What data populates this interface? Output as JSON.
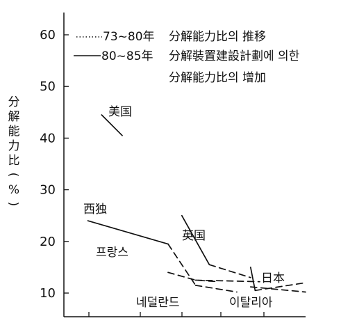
{
  "chart_data": {
    "type": "line",
    "ylabel": "分解能力比(%)",
    "ylim": [
      5,
      60
    ],
    "yticks": [
      10,
      20,
      30,
      40,
      50,
      60
    ],
    "grid": false,
    "legend": {
      "placement": "top",
      "entries": [
        {
          "style": "dotted",
          "label_a": "73~80年",
          "label_b": "分解能力比의 推移"
        },
        {
          "style": "solid",
          "label_a": "80~85年",
          "label_b": "分解裝置建設計劃에 의한",
          "label_c": "分解能力比의 增加"
        }
      ]
    },
    "series": [
      {
        "name": "美国",
        "segments": [
          {
            "style": "solid",
            "x": [
              0.55,
              1.0
            ],
            "y": [
              44.5,
              40.5
            ]
          }
        ]
      },
      {
        "name": "西独",
        "segments": [
          {
            "style": "solid",
            "x": [
              0.25,
              2.0
            ],
            "y": [
              24.0,
              19.5
            ]
          },
          {
            "style": "dashed",
            "x": [
              2.0,
              2.6
            ],
            "y": [
              19.5,
              11.5
            ]
          },
          {
            "style": "dashed",
            "x": [
              2.6,
              3.5
            ],
            "y": [
              11.5,
              10.2
            ]
          }
        ]
      },
      {
        "name": "프랑스",
        "segments": [
          {
            "style": "dashed",
            "x": [
              2.0,
              2.6,
              3.1
            ],
            "y": [
              14.0,
              12.5,
              12.2
            ]
          }
        ]
      },
      {
        "name": "英国",
        "segments": [
          {
            "style": "solid",
            "x": [
              2.3,
              2.9
            ],
            "y": [
              25.0,
              15.5
            ]
          },
          {
            "style": "dashed",
            "x": [
              2.9,
              3.8
            ],
            "y": [
              15.5,
              13.0
            ]
          }
        ]
      },
      {
        "name": "日本",
        "segments": [
          {
            "style": "solid",
            "x": [
              3.8,
              3.9
            ],
            "y": [
              15.0,
              10.5
            ]
          },
          {
            "style": "dashed",
            "x": [
              3.9,
              5.0
            ],
            "y": [
              10.5,
              12.0
            ]
          }
        ]
      },
      {
        "name": "이탈리아",
        "segments": [
          {
            "style": "dashed",
            "x": [
              3.8,
              5.0
            ],
            "y": [
              11.2,
              10.2
            ]
          }
        ]
      },
      {
        "name": "네덜란드",
        "segments": [
          {
            "style": "dashed",
            "x": [
              2.6,
              4.0
            ],
            "y": [
              12.5,
              12.2
            ]
          }
        ]
      }
    ],
    "annotations": [
      "美国",
      "西独",
      "프랑스",
      "英国",
      "日本",
      "네덜란드",
      "이탈리아"
    ]
  }
}
